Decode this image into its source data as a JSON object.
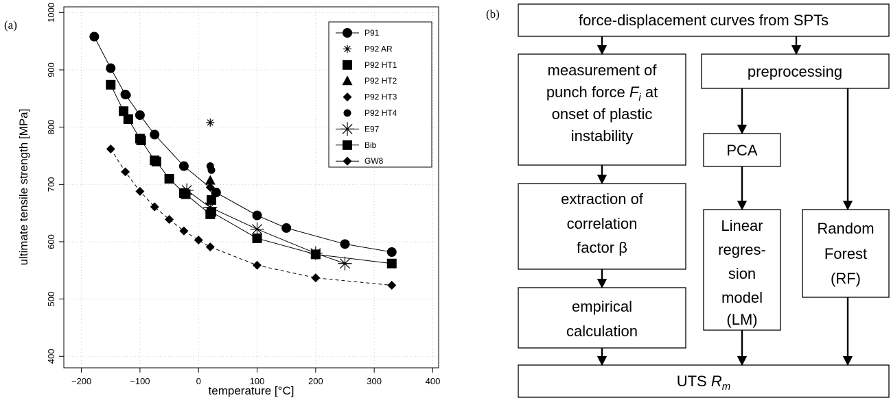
{
  "panel_a_label": "(a)",
  "panel_b_label": "(b)",
  "chart_data": {
    "type": "scatter",
    "title": "",
    "xlabel": "temperature [°C]",
    "ylabel": "ultimate tensile strength [MPa]",
    "xlim": [
      -230,
      410
    ],
    "ylim": [
      380,
      1010
    ],
    "x_ticks": [
      -200,
      -100,
      0,
      100,
      200,
      300,
      400
    ],
    "y_ticks": [
      400,
      500,
      600,
      700,
      800,
      900,
      1000
    ],
    "grid": true,
    "legend_position": "top-right",
    "series": [
      {
        "name": "P91",
        "marker": "circle",
        "connected": true,
        "dash": "solid",
        "points": [
          [
            -178,
            958
          ],
          [
            -150,
            903
          ],
          [
            -125,
            857
          ],
          [
            -100,
            821
          ],
          [
            -75,
            787
          ],
          [
            -25,
            732
          ],
          [
            30,
            686
          ],
          [
            100,
            646
          ],
          [
            150,
            624
          ],
          [
            250,
            596
          ],
          [
            330,
            582
          ]
        ]
      },
      {
        "name": "P92 AR",
        "marker": "asterisk",
        "connected": false,
        "dash": "",
        "points": [
          [
            20,
            808
          ]
        ]
      },
      {
        "name": "P92 HT1",
        "marker": "square",
        "connected": false,
        "dash": "",
        "points": [
          [
            22,
            673
          ]
        ]
      },
      {
        "name": "P92 HT2",
        "marker": "triangle",
        "connected": false,
        "dash": "",
        "points": [
          [
            20,
            707
          ]
        ]
      },
      {
        "name": "P92 HT3",
        "marker": "diamond",
        "connected": false,
        "dash": "",
        "points": [
          [
            20,
            695
          ]
        ]
      },
      {
        "name": "P92 HT4",
        "marker": "dot",
        "connected": false,
        "dash": "",
        "points": [
          [
            20,
            732
          ],
          [
            22,
            725
          ],
          [
            -122,
            856
          ],
          [
            28,
            685
          ]
        ]
      },
      {
        "name": "E97",
        "marker": "star",
        "connected": true,
        "dash": "solid",
        "points": [
          [
            -20,
            690
          ],
          [
            20,
            660
          ],
          [
            100,
            622
          ],
          [
            200,
            580
          ],
          [
            250,
            562
          ]
        ]
      },
      {
        "name": "Bib",
        "marker": "square",
        "connected": true,
        "dash": "solid",
        "points": [
          [
            -150,
            874
          ],
          [
            -128,
            828
          ],
          [
            -120,
            814
          ],
          [
            -100,
            780
          ],
          [
            -98,
            777
          ],
          [
            -75,
            742
          ],
          [
            -72,
            740
          ],
          [
            -50,
            710
          ],
          [
            -25,
            685
          ],
          [
            -22,
            683
          ],
          [
            20,
            648
          ],
          [
            22,
            652
          ],
          [
            100,
            606
          ],
          [
            200,
            578
          ],
          [
            330,
            562
          ]
        ]
      },
      {
        "name": "GW8",
        "marker": "diamond",
        "connected": true,
        "dash": "dashed",
        "points": [
          [
            -150,
            762
          ],
          [
            -125,
            722
          ],
          [
            -100,
            688
          ],
          [
            -75,
            661
          ],
          [
            -50,
            639
          ],
          [
            -25,
            619
          ],
          [
            0,
            603
          ],
          [
            20,
            591
          ],
          [
            100,
            559
          ],
          [
            200,
            537
          ],
          [
            330,
            524
          ]
        ]
      }
    ]
  },
  "flowchart": {
    "top": "force-displacement curves from SPTs",
    "measure": [
      "measurement of",
      "punch force",
      "at",
      "onset of plastic",
      "instability"
    ],
    "measure_symbol": "F",
    "measure_sub": "i",
    "preprocessing": "preprocessing",
    "pca": "PCA",
    "extraction": [
      "extraction of",
      "correlation",
      "factor β"
    ],
    "linear": [
      "Linear",
      "regres-",
      "sion",
      "model",
      "(LM)"
    ],
    "random": [
      "Random",
      "Forest",
      "(RF)"
    ],
    "empirical": [
      "empirical",
      "calculation"
    ],
    "uts": "UTS",
    "uts_symbol": "R",
    "uts_sub": "m"
  }
}
